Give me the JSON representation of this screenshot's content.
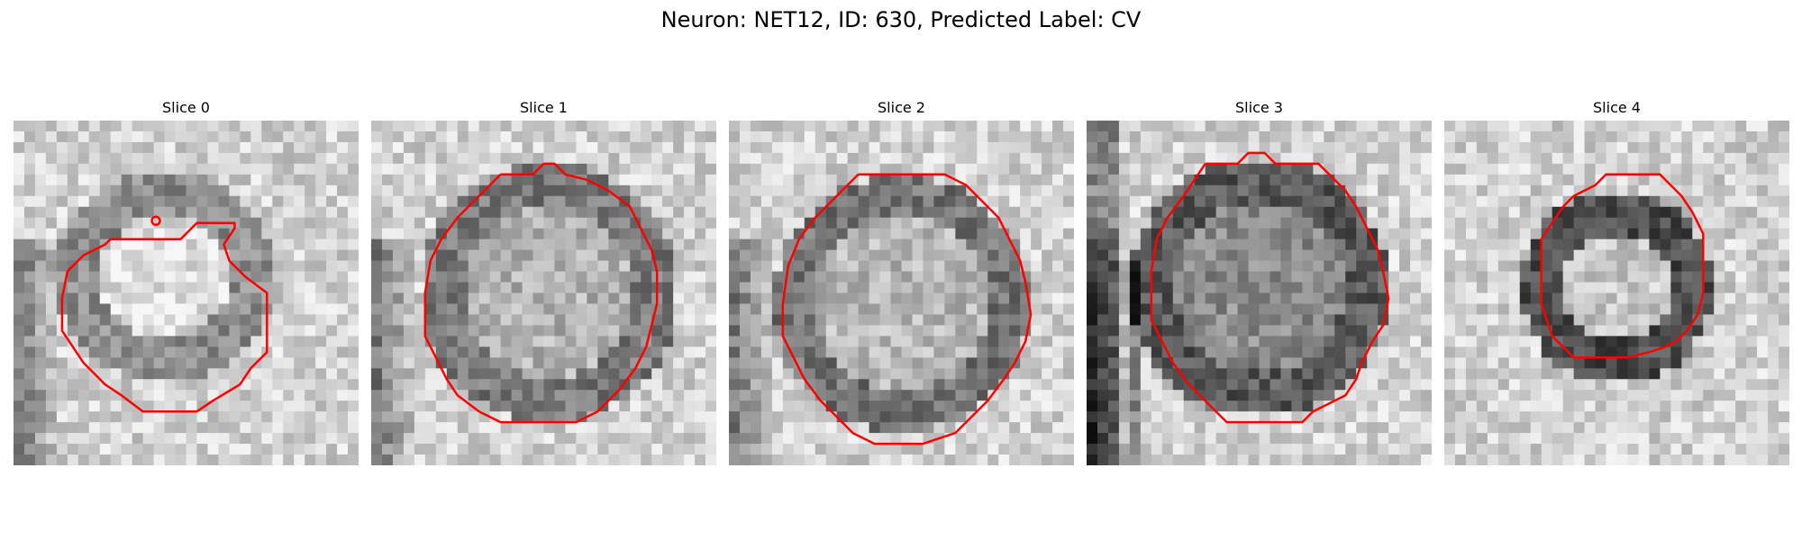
{
  "figure": {
    "title": "Neuron: NET12, ID: 630, Predicted Label: CV"
  },
  "slices": [
    {
      "label": "Slice 0"
    },
    {
      "label": "Slice 1"
    },
    {
      "label": "Slice 2"
    },
    {
      "label": "Slice 3"
    },
    {
      "label": "Slice 4"
    }
  ],
  "colors": {
    "contour": "#ff0000",
    "background": "#ffffff"
  }
}
